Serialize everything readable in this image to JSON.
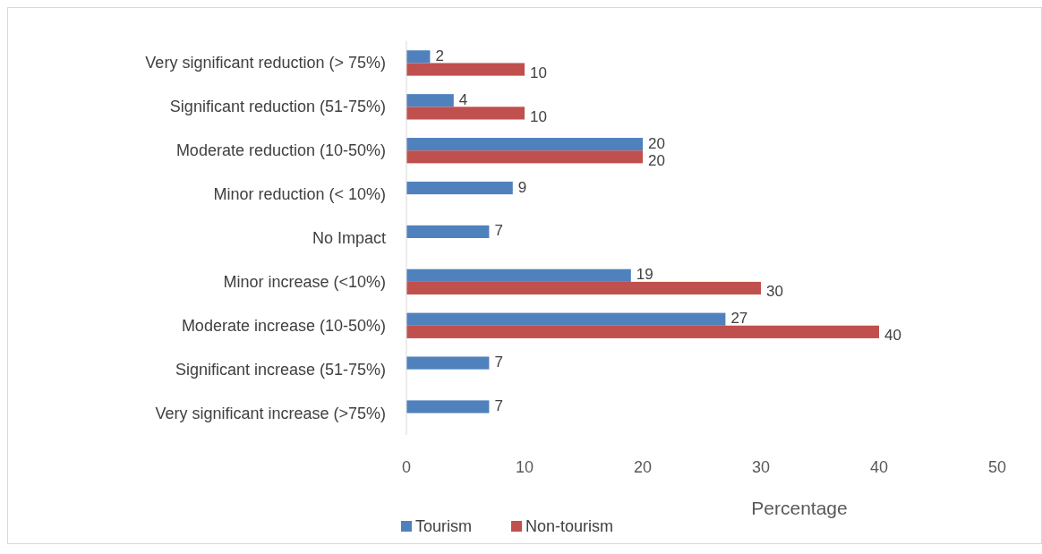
{
  "chart_data": {
    "type": "bar",
    "orientation": "horizontal",
    "xlabel": "Percentage",
    "categories": [
      "Very significant reduction (> 75%)",
      "Significant reduction (51-75%)",
      "Moderate reduction (10-50%)",
      "Minor reduction (< 10%)",
      "No Impact",
      "Minor increase (<10%)",
      "Moderate increase (10-50%)",
      "Significant increase (51-75%)",
      "Very significant increase (>75%)"
    ],
    "series": [
      {
        "name": "Tourism",
        "color": "#4f81bd",
        "values": [
          2,
          4,
          20,
          9,
          7,
          19,
          27,
          7,
          7
        ]
      },
      {
        "name": "Non-tourism",
        "color": "#c0504d",
        "values": [
          10,
          10,
          20,
          null,
          null,
          30,
          40,
          null,
          null
        ]
      }
    ],
    "xlim": [
      0,
      50
    ],
    "xticks": [
      0,
      10,
      20,
      30,
      40,
      50
    ],
    "grid": false,
    "legend": "bottom",
    "data_labels": true
  }
}
